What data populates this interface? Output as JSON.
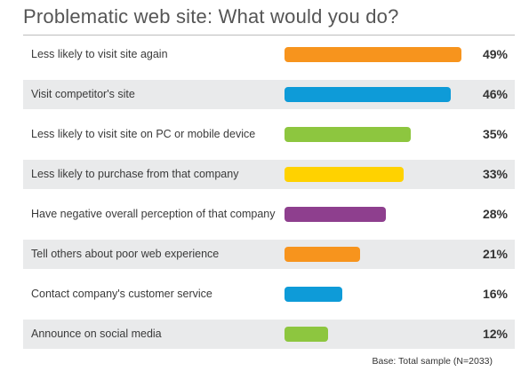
{
  "chart_data": {
    "type": "bar",
    "orientation": "horizontal",
    "title": "Problematic web site: What would you do?",
    "categories": [
      "Less likely to visit site again",
      "Visit competitor's site",
      "Less likely to visit site on PC or mobile device",
      "Less likely to purchase from that company",
      "Have negative overall perception of that company",
      "Tell others about poor web experience",
      "Contact company's customer service",
      "Announce on social media"
    ],
    "values": [
      49,
      46,
      35,
      33,
      28,
      21,
      16,
      12
    ],
    "value_labels": [
      "49%",
      "46%",
      "35%",
      "33%",
      "28%",
      "21%",
      "16%",
      "12%"
    ],
    "bar_colors": [
      "#f7941d",
      "#0e9bd8",
      "#8dc63f",
      "#ffd200",
      "#8e3f8e",
      "#f7941d",
      "#0e9bd8",
      "#8dc63f"
    ],
    "xlim": [
      0,
      49
    ],
    "grid": false,
    "footnote": "Base: Total sample (N=2033)"
  }
}
